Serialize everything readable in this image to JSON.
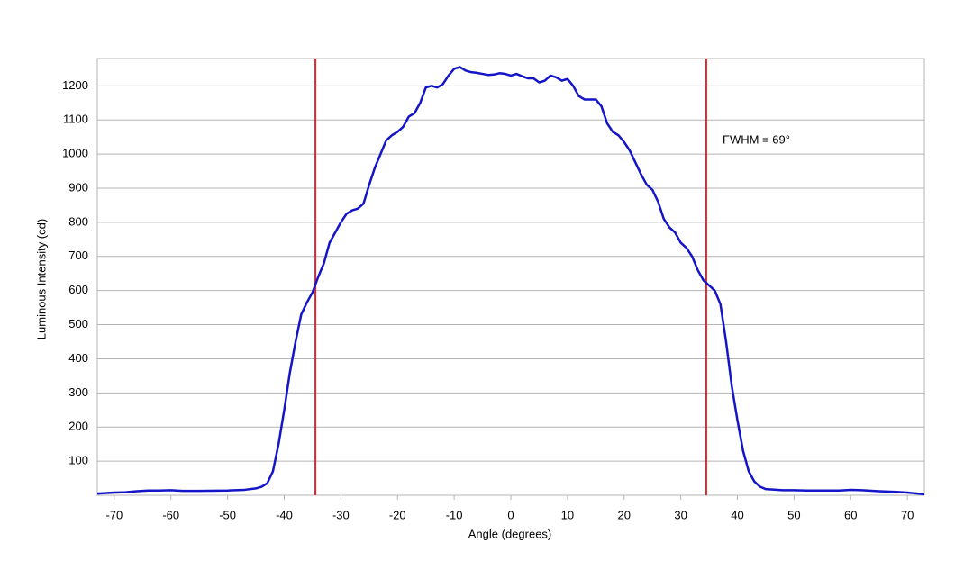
{
  "chart_data": {
    "type": "line",
    "x_label": "Angle (degrees)",
    "y_label": "Luminous Intensity (cd)",
    "annotation": "FWHM = 69°",
    "xlim": [
      -73,
      73
    ],
    "ylim": [
      0,
      1280
    ],
    "xticks": [
      -70,
      -60,
      -50,
      -40,
      -30,
      -20,
      -10,
      0,
      10,
      20,
      30,
      40,
      50,
      60,
      70
    ],
    "yticks": [
      100,
      200,
      300,
      400,
      500,
      600,
      700,
      800,
      900,
      1000,
      1100,
      1200
    ],
    "grid": true,
    "vlines": [
      -34.5,
      34.5
    ],
    "vline_color": "#e8202a",
    "x": [
      -73,
      -70,
      -68,
      -66,
      -64,
      -62,
      -60,
      -58,
      -55,
      -50,
      -47,
      -45,
      -44,
      -43,
      -42,
      -41,
      -40,
      -39,
      -38,
      -37,
      -36,
      -35,
      -34,
      -33,
      -32,
      -31,
      -30,
      -29,
      -28,
      -27,
      -26,
      -25,
      -24,
      -23,
      -22,
      -21,
      -20,
      -19,
      -18,
      -17,
      -16,
      -15,
      -14,
      -13,
      -12,
      -11,
      -10,
      -9,
      -8,
      -7,
      -6,
      -5,
      -4,
      -3,
      -2,
      -1,
      0,
      1,
      2,
      3,
      4,
      5,
      6,
      7,
      8,
      9,
      10,
      11,
      12,
      13,
      14,
      15,
      16,
      17,
      18,
      19,
      20,
      21,
      22,
      23,
      24,
      25,
      26,
      27,
      28,
      29,
      30,
      31,
      32,
      33,
      34,
      35,
      36,
      37,
      38,
      39,
      40,
      41,
      42,
      43,
      44,
      45,
      48,
      50,
      52,
      55,
      58,
      60,
      62,
      65,
      68,
      70,
      73
    ],
    "series": [
      {
        "color": "#1414c8",
        "values": [
          5,
          8,
          9,
          12,
          14,
          14,
          15,
          13,
          13,
          14,
          16,
          20,
          25,
          35,
          70,
          150,
          250,
          360,
          450,
          530,
          565,
          595,
          640,
          680,
          740,
          770,
          800,
          825,
          835,
          840,
          855,
          910,
          960,
          1000,
          1040,
          1055,
          1065,
          1080,
          1110,
          1120,
          1150,
          1195,
          1200,
          1195,
          1205,
          1230,
          1250,
          1255,
          1245,
          1240,
          1238,
          1235,
          1232,
          1233,
          1237,
          1235,
          1230,
          1235,
          1228,
          1222,
          1222,
          1210,
          1215,
          1230,
          1225,
          1215,
          1220,
          1200,
          1170,
          1160,
          1160,
          1160,
          1140,
          1090,
          1065,
          1055,
          1035,
          1010,
          975,
          940,
          910,
          895,
          860,
          810,
          785,
          770,
          740,
          725,
          700,
          660,
          630,
          615,
          600,
          560,
          450,
          320,
          220,
          130,
          70,
          40,
          25,
          18,
          15,
          15,
          14,
          14,
          14,
          16,
          15,
          12,
          10,
          8,
          3
        ]
      }
    ]
  }
}
